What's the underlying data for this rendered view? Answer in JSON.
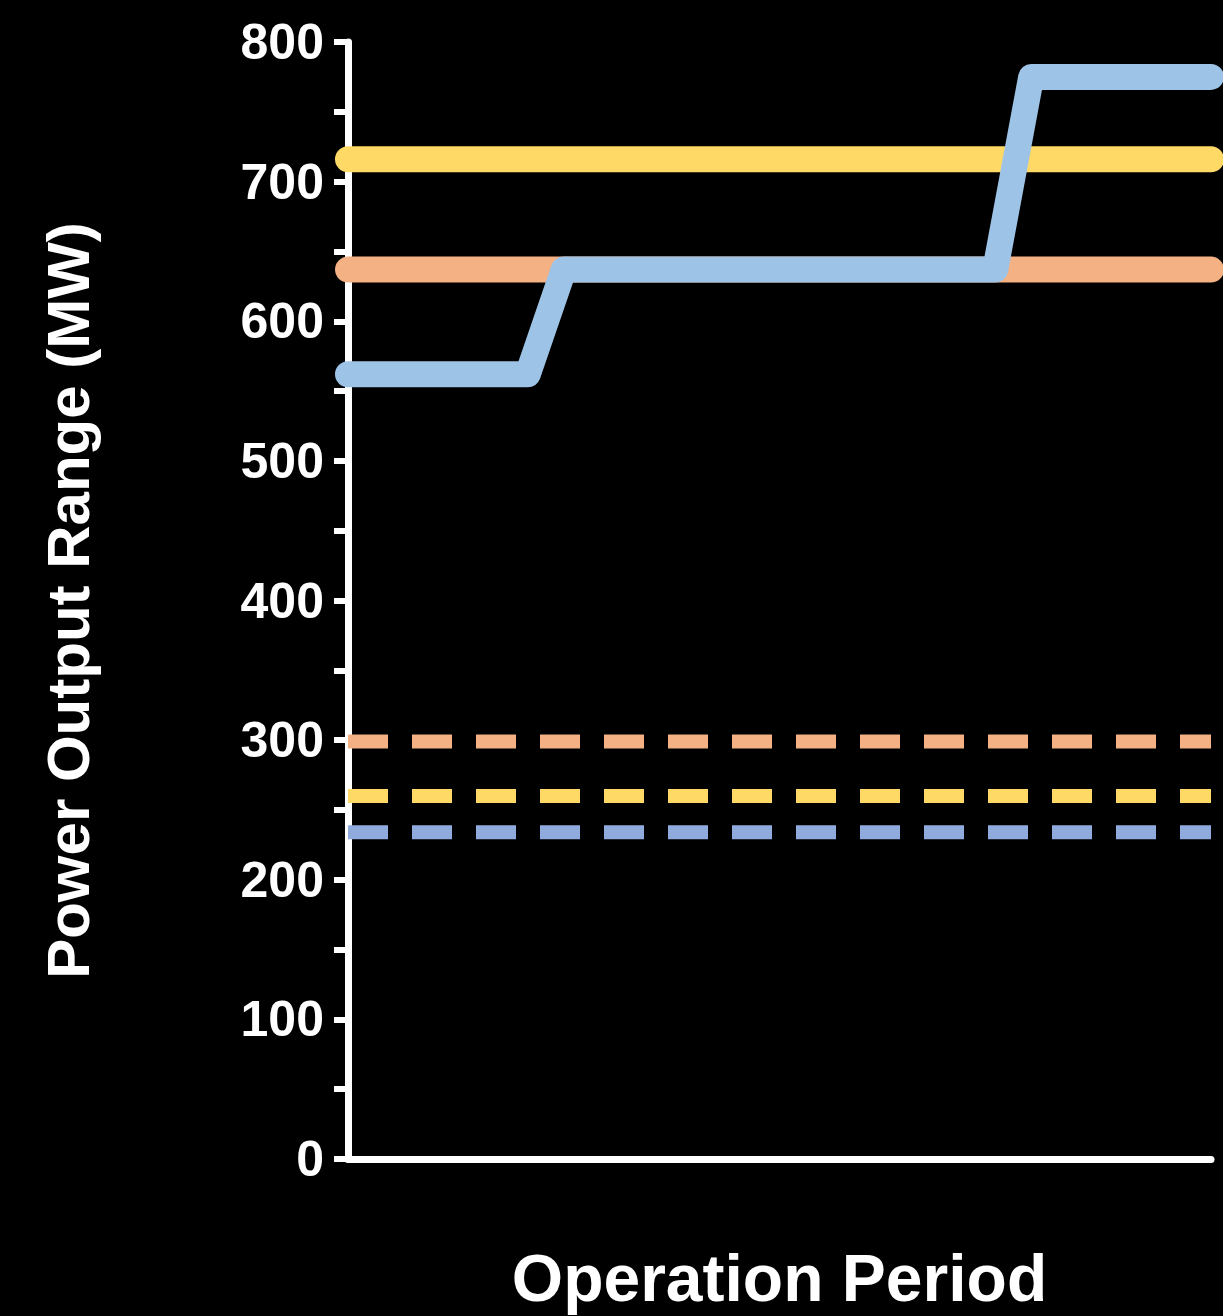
{
  "chart_data": {
    "type": "line",
    "xlabel": "Operation Period",
    "ylabel": "Power Output Range (MW)",
    "categories": [
      null,
      null,
      null,
      null,
      null,
      null,
      null,
      null,
      null,
      null,
      null,
      null,
      null,
      null,
      null,
      null,
      null,
      null,
      null,
      null,
      null,
      null,
      null,
      null,
      null
    ],
    "series": [
      {
        "color": "#ffd966",
        "line_style": "solid",
        "values": [
          716,
          716,
          716,
          716,
          716,
          716,
          716,
          716,
          716,
          716,
          716,
          716,
          716,
          716,
          716,
          716,
          716,
          716,
          716,
          716,
          716,
          716,
          716,
          716,
          716
        ]
      },
      {
        "color": "#f4b183",
        "line_style": "solid",
        "values": [
          637,
          637,
          637,
          637,
          637,
          637,
          637,
          637,
          637,
          637,
          637,
          637,
          637,
          637,
          637,
          637,
          637,
          637,
          637,
          637,
          637,
          637,
          637,
          637,
          637
        ]
      },
      {
        "color": "#9dc3e6",
        "line_style": "solid",
        "values": [
          562,
          562,
          562,
          562,
          562,
          562,
          637,
          637,
          637,
          637,
          637,
          637,
          637,
          637,
          637,
          637,
          637,
          637,
          637,
          775,
          775,
          775,
          775,
          775,
          775
        ]
      },
      {
        "color": "#f4b183",
        "line_style": "dashed",
        "values": [
          299,
          299,
          299,
          299,
          299,
          299,
          299,
          299,
          299,
          299,
          299,
          299,
          299,
          299,
          299,
          299,
          299,
          299,
          299,
          299,
          299,
          299,
          299,
          299,
          299
        ]
      },
      {
        "color": "#ffd966",
        "line_style": "dashed",
        "values": [
          260,
          260,
          260,
          260,
          260,
          260,
          260,
          260,
          260,
          260,
          260,
          260,
          260,
          260,
          260,
          260,
          260,
          260,
          260,
          260,
          260,
          260,
          260,
          260,
          260
        ]
      },
      {
        "color": "#8faadc",
        "line_style": "dashed",
        "values": [
          234,
          234,
          234,
          234,
          234,
          234,
          234,
          234,
          234,
          234,
          234,
          234,
          234,
          234,
          234,
          234,
          234,
          234,
          234,
          234,
          234,
          234,
          234,
          234,
          234
        ]
      }
    ],
    "ylim": [
      0,
      800
    ],
    "yticks": [
      0,
      {
        "value": 50,
        "label": null
      },
      100,
      {
        "value": 150,
        "label": null
      },
      200,
      {
        "value": 250,
        "label": null
      },
      300,
      {
        "value": 350,
        "label": null
      },
      400,
      {
        "value": 450,
        "label": null
      },
      500,
      {
        "value": 550,
        "label": null
      },
      600,
      {
        "value": 650,
        "label": null
      },
      700,
      {
        "value": 750,
        "label": null
      },
      800
    ],
    "tick_labels": "y",
    "marker": "none",
    "grid": false
  }
}
